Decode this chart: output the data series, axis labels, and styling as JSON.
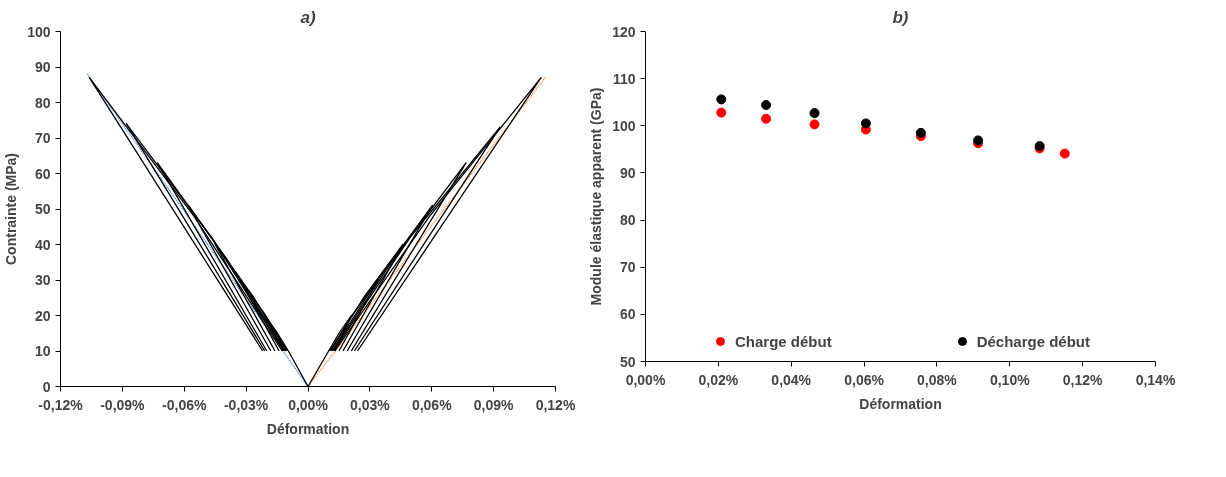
{
  "chart_data": [
    {
      "type": "line",
      "title": "a)",
      "xlabel": "Déformation",
      "ylabel": "Contrainte (MPa)",
      "xlim": [
        -0.12,
        0.12
      ],
      "xticks": [
        {
          "value": -0.12,
          "label": "-0,12%"
        },
        {
          "value": -0.09,
          "label": "-0,09%"
        },
        {
          "value": -0.06,
          "label": "-0,06%"
        },
        {
          "value": -0.03,
          "label": "-0,03%"
        },
        {
          "value": 0,
          "label": "0,00%"
        },
        {
          "value": 0.03,
          "label": "0,03%"
        },
        {
          "value": 0.06,
          "label": "0,06%"
        },
        {
          "value": 0.09,
          "label": "0,09%"
        },
        {
          "value": 0.12,
          "label": "0,12%"
        }
      ],
      "ylim": [
        0,
        100
      ],
      "yticks": [
        0,
        10,
        20,
        30,
        40,
        50,
        60,
        70,
        80,
        90,
        100
      ],
      "grid": false,
      "legend": false,
      "series": [
        {
          "color": "#4472c4",
          "line_style": "dotted",
          "x": [
            -0.107,
            0
          ],
          "values": [
            88,
            0
          ]
        },
        {
          "color": "#ed7d31",
          "line_style": "dotted",
          "x": [
            0.115,
            0
          ],
          "values": [
            87,
            0
          ]
        },
        {
          "color": "#000000",
          "x": [
            -0.012,
            -0.021,
            -0.0148,
            -0.0095,
            0,
            0.01,
            0.015,
            0.021,
            0.013
          ],
          "values": [
            10,
            20,
            15,
            10,
            0,
            10,
            15,
            20,
            10
          ]
        },
        {
          "color": "#000000",
          "x": [
            0.0105,
            0.0213,
            0.034,
            0.015
          ],
          "values": [
            10,
            20,
            30,
            10
          ]
        },
        {
          "color": "#000000",
          "x": [
            0.011,
            0.0269,
            0.046,
            0.017
          ],
          "values": [
            10,
            25,
            40,
            10
          ]
        },
        {
          "color": "#000000",
          "x": [
            0.0115,
            0.0338,
            0.0603,
            0.019
          ],
          "values": [
            10,
            30,
            51,
            10
          ]
        },
        {
          "color": "#000000",
          "x": [
            0.012,
            0.0416,
            0.0766,
            0.021
          ],
          "values": [
            10,
            36,
            63,
            10
          ]
        },
        {
          "color": "#000000",
          "x": [
            0.0125,
            0.0495,
            0.093,
            0.0225
          ],
          "values": [
            10,
            42,
            73,
            10
          ]
        },
        {
          "color": "#000000",
          "x": [
            0.013,
            0.059,
            0.113,
            0.024
          ],
          "values": [
            10,
            48,
            87,
            10
          ]
        },
        {
          "color": "#000000",
          "x": [
            -0.01,
            -0.0205,
            -0.033,
            -0.014
          ],
          "values": [
            10,
            20,
            30,
            10
          ]
        },
        {
          "color": "#000000",
          "x": [
            -0.0105,
            -0.0262,
            -0.045,
            -0.016
          ],
          "values": [
            10,
            25,
            40,
            10
          ]
        },
        {
          "color": "#000000",
          "x": [
            -0.011,
            -0.0324,
            -0.058,
            -0.018
          ],
          "values": [
            10,
            30,
            51,
            10
          ]
        },
        {
          "color": "#000000",
          "x": [
            -0.0115,
            -0.0395,
            -0.073,
            -0.02
          ],
          "values": [
            10,
            36,
            63,
            10
          ]
        },
        {
          "color": "#000000",
          "x": [
            -0.012,
            -0.0467,
            -0.088,
            -0.021
          ],
          "values": [
            10,
            42,
            74,
            10
          ]
        },
        {
          "color": "#000000",
          "x": [
            -0.0125,
            -0.0553,
            -0.106,
            -0.022
          ],
          "values": [
            10,
            48,
            87,
            10
          ]
        }
      ]
    },
    {
      "type": "scatter",
      "title": "b)",
      "xlabel": "Déformation",
      "ylabel": "Module élastique apparent (GPa)",
      "xlim": [
        0,
        0.14
      ],
      "xticks": [
        {
          "value": 0,
          "label": "0,00%"
        },
        {
          "value": 0.02,
          "label": "0,02%"
        },
        {
          "value": 0.04,
          "label": "0,04%"
        },
        {
          "value": 0.06,
          "label": "0,06%"
        },
        {
          "value": 0.08,
          "label": "0,08%"
        },
        {
          "value": 0.1,
          "label": "0,10%"
        },
        {
          "value": 0.12,
          "label": "0,12%"
        },
        {
          "value": 0.14,
          "label": "0,14%"
        }
      ],
      "ylim": [
        50,
        120
      ],
      "yticks": [
        50,
        60,
        70,
        80,
        90,
        100,
        110,
        120
      ],
      "grid": false,
      "legend": "bottom",
      "marker": "circle",
      "series": [
        {
          "name": "Charge début",
          "color": "#ff0000",
          "x": [
            0.0208,
            0.0331,
            0.0464,
            0.0605,
            0.0756,
            0.0913,
            0.1082,
            0.1151
          ],
          "values": [
            102.8,
            101.5,
            100.3,
            99.2,
            97.8,
            96.3,
            95.2,
            94.1
          ]
        },
        {
          "name": "Décharge début",
          "color": "#000000",
          "x": [
            0.0208,
            0.0331,
            0.0464,
            0.0605,
            0.0756,
            0.0913,
            0.1082
          ],
          "values": [
            105.6,
            104.4,
            102.7,
            100.5,
            98.5,
            96.9,
            95.7
          ]
        }
      ]
    }
  ]
}
